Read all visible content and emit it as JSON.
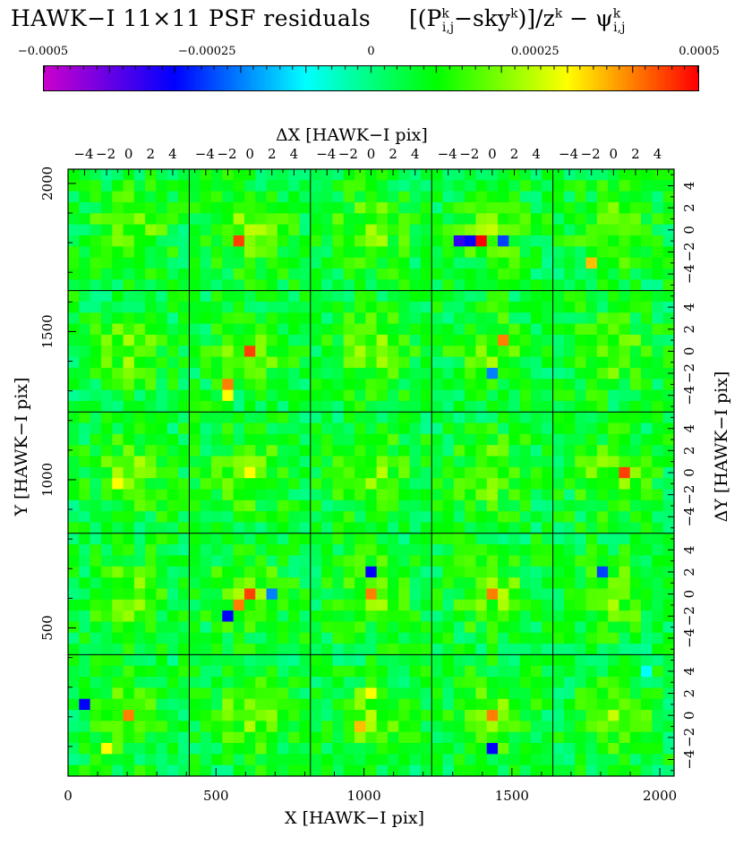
{
  "title": {
    "main": "HAWK−I 11×11 PSF residuals",
    "formula_open": "[(P",
    "formula_sub1": "i,j",
    "formula_sup1": "k",
    "formula_mid": "−sky",
    "formula_sup2": "k",
    "formula_close": ")]/z",
    "formula_sup3": "k",
    "formula_minus": " − ψ",
    "formula_sub2": "i,j",
    "formula_sup4": "k"
  },
  "colorbar": {
    "min": -0.0005,
    "max": 0.0005,
    "tick_labels": [
      "−0.0005",
      "−0.00025",
      "0",
      "0.00025",
      "0.0005"
    ],
    "tick_values": [
      -0.0005,
      -0.00025,
      0,
      0.00025,
      0.0005
    ],
    "colors": [
      "#cc00cc",
      "#0000ff",
      "#00ffff",
      "#00ff00",
      "#ffff00",
      "#ff0000"
    ]
  },
  "chart_data": {
    "type": "heatmap",
    "xlabel": "X [HAWK−I pix]",
    "ylabel": "Y [HAWK−I pix]",
    "x2label": "ΔX [HAWK−I pix]",
    "y2label": "ΔY [HAWK−I pix]",
    "xlim": [
      0,
      2048
    ],
    "ylim": [
      0,
      2048
    ],
    "xticks": [
      0,
      500,
      1000,
      1500,
      2000
    ],
    "yticks": [
      500,
      1000,
      1500,
      2000
    ],
    "xtick_labels": [
      "0",
      "500",
      "1000",
      "1500",
      "2000"
    ],
    "ytick_labels": [
      "500",
      "1000",
      "1500",
      "2000"
    ],
    "dticks": [
      -4,
      -2,
      0,
      2,
      4
    ],
    "dtick_labels": [
      "−4",
      "−2",
      "0",
      "2",
      "4"
    ],
    "panels": {
      "cols": 5,
      "rows": 5,
      "size": 11
    },
    "hotspots": [
      {
        "row": 0,
        "col": 1,
        "dx": -1,
        "dy": -1,
        "value": 0.00045
      },
      {
        "row": 0,
        "col": 3,
        "dx": -1,
        "dy": -1,
        "value": 0.0005
      },
      {
        "row": 0,
        "col": 3,
        "dx": -3,
        "dy": -1,
        "value": -0.00035
      },
      {
        "row": 0,
        "col": 3,
        "dx": -2,
        "dy": -1,
        "value": -0.0003
      },
      {
        "row": 0,
        "col": 3,
        "dx": 1,
        "dy": -1,
        "value": -0.00025
      },
      {
        "row": 0,
        "col": 4,
        "dx": -2,
        "dy": -3,
        "value": 0.00035
      },
      {
        "row": 1,
        "col": 1,
        "dx": 0,
        "dy": 0,
        "value": 0.00045
      },
      {
        "row": 1,
        "col": 1,
        "dx": -2,
        "dy": -3,
        "value": 0.0004
      },
      {
        "row": 1,
        "col": 1,
        "dx": -2,
        "dy": -4,
        "value": 0.0003
      },
      {
        "row": 1,
        "col": 3,
        "dx": 1,
        "dy": 1,
        "value": 0.0004
      },
      {
        "row": 1,
        "col": 3,
        "dx": 0,
        "dy": -2,
        "value": -0.0002
      },
      {
        "row": 2,
        "col": 1,
        "dx": 0,
        "dy": 0,
        "value": 0.0003
      },
      {
        "row": 2,
        "col": 4,
        "dx": 1,
        "dy": 0,
        "value": 0.00045
      },
      {
        "row": 2,
        "col": 0,
        "dx": -1,
        "dy": -1,
        "value": 0.0003
      },
      {
        "row": 3,
        "col": 1,
        "dx": 0,
        "dy": 0,
        "value": 0.00045
      },
      {
        "row": 3,
        "col": 1,
        "dx": -1,
        "dy": -1,
        "value": 0.0004
      },
      {
        "row": 3,
        "col": 1,
        "dx": -2,
        "dy": -2,
        "value": -0.0003
      },
      {
        "row": 3,
        "col": 1,
        "dx": 2,
        "dy": 0,
        "value": -0.0002
      },
      {
        "row": 3,
        "col": 2,
        "dx": 0,
        "dy": 2,
        "value": -0.0003
      },
      {
        "row": 3,
        "col": 2,
        "dx": 0,
        "dy": 0,
        "value": 0.0004
      },
      {
        "row": 3,
        "col": 3,
        "dx": 0,
        "dy": 0,
        "value": 0.0004
      },
      {
        "row": 3,
        "col": 4,
        "dx": -1,
        "dy": 2,
        "value": -0.00025
      },
      {
        "row": 4,
        "col": 0,
        "dx": 0,
        "dy": 0,
        "value": 0.0004
      },
      {
        "row": 4,
        "col": 0,
        "dx": -4,
        "dy": 1,
        "value": -0.0003
      },
      {
        "row": 4,
        "col": 0,
        "dx": -2,
        "dy": -3,
        "value": 0.0003
      },
      {
        "row": 4,
        "col": 2,
        "dx": 0,
        "dy": 2,
        "value": 0.0003
      },
      {
        "row": 4,
        "col": 2,
        "dx": -1,
        "dy": -1,
        "value": 0.00035
      },
      {
        "row": 4,
        "col": 3,
        "dx": 0,
        "dy": 0,
        "value": 0.0004
      },
      {
        "row": 4,
        "col": 3,
        "dx": 0,
        "dy": -3,
        "value": -0.0003
      },
      {
        "row": 4,
        "col": 4,
        "dx": 3,
        "dy": 4,
        "value": -0.0001
      }
    ]
  }
}
